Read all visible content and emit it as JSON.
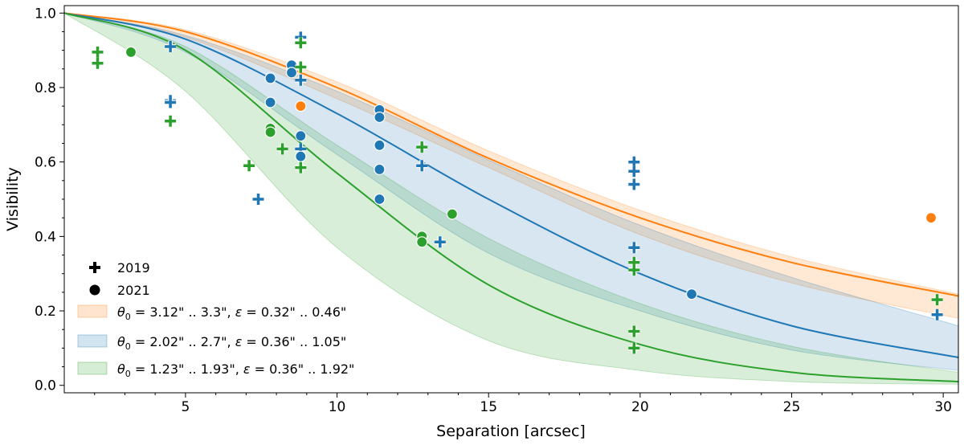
{
  "chart_data": {
    "type": "scatter",
    "title": "",
    "xlabel": "Separation [arcsec]",
    "ylabel": "Visibility",
    "xlim": [
      1,
      30.5
    ],
    "ylim": [
      -0.02,
      1.02
    ],
    "xticks": [
      5,
      10,
      15,
      20,
      25,
      30
    ],
    "yticks": [
      0.0,
      0.2,
      0.4,
      0.6,
      0.8,
      1.0
    ],
    "xtick_labels": [
      "5",
      "10",
      "15",
      "20",
      "25",
      "30"
    ],
    "ytick_labels": [
      "0.0",
      "0.2",
      "0.4",
      "0.6",
      "0.8",
      "1.0"
    ],
    "legend_position": "lower-left",
    "legend_markers": [
      {
        "symbol": "plus",
        "label": "2019"
      },
      {
        "symbol": "circle",
        "label": "2021"
      }
    ],
    "bands": [
      {
        "name": "orange",
        "color": "#ff7f0e",
        "label_theta": " = 3.12\" .. 3.3\", ",
        "label_eps": " = 0.32\" .. 0.46\"",
        "center_x": [
          1,
          5,
          10,
          15,
          20,
          25,
          30.5
        ],
        "center_y": [
          1.0,
          0.95,
          0.8,
          0.61,
          0.45,
          0.33,
          0.24
        ],
        "band_x": [
          1,
          5,
          10,
          15,
          20,
          25,
          30.5
        ],
        "upper": [
          1.0,
          0.955,
          0.815,
          0.63,
          0.47,
          0.345,
          0.245
        ],
        "lower": [
          1.0,
          0.935,
          0.77,
          0.585,
          0.405,
          0.275,
          0.18
        ]
      },
      {
        "name": "blue",
        "color": "#1f77b4",
        "label_theta": " = 2.02\" .. 2.7\", ",
        "label_eps": " = 0.36\" .. 1.05\"",
        "center_x": [
          1,
          5,
          10,
          15,
          20,
          25,
          30.5
        ],
        "center_y": [
          1.0,
          0.93,
          0.73,
          0.5,
          0.3,
          0.16,
          0.075
        ],
        "band_x": [
          1,
          5,
          10,
          15,
          20,
          25,
          30.5
        ],
        "upper": [
          1.0,
          0.94,
          0.79,
          0.605,
          0.43,
          0.29,
          0.16
        ],
        "lower": [
          1.0,
          0.895,
          0.62,
          0.355,
          0.2,
          0.095,
          0.04
        ]
      },
      {
        "name": "green",
        "color": "#2ca02c",
        "label_theta": " = 1.23\" .. 1.93\", ",
        "label_eps": " = 0.36\" .. 1.92\"",
        "center_x": [
          1,
          5,
          10,
          15,
          20,
          25,
          30.5
        ],
        "center_y": [
          1.0,
          0.9,
          0.57,
          0.27,
          0.11,
          0.035,
          0.01
        ],
        "band_x": [
          1,
          5,
          10,
          15,
          20,
          25,
          30.5
        ],
        "upper": [
          1.0,
          0.91,
          0.645,
          0.395,
          0.22,
          0.105,
          0.035
        ],
        "lower": [
          1.0,
          0.79,
          0.37,
          0.12,
          0.04,
          0.01,
          0.003
        ]
      }
    ],
    "series": [
      {
        "name": "orange 2019",
        "color": "#ff7f0e",
        "marker": "plus",
        "x": [],
        "y": []
      },
      {
        "name": "orange 2021",
        "color": "#ff7f0e",
        "marker": "circle",
        "x": [
          8.8,
          29.6
        ],
        "y": [
          0.75,
          0.45
        ]
      },
      {
        "name": "blue 2019",
        "color": "#1f77b4",
        "marker": "plus",
        "x": [
          4.5,
          4.5,
          4.5,
          7.4,
          8.8,
          8.8,
          8.8,
          12.8,
          13.4,
          19.8,
          19.8,
          19.8,
          19.8,
          29.8
        ],
        "y": [
          0.91,
          0.765,
          0.76,
          0.5,
          0.935,
          0.82,
          0.635,
          0.59,
          0.385,
          0.6,
          0.575,
          0.54,
          0.37,
          0.19
        ]
      },
      {
        "name": "blue 2021",
        "color": "#1f77b4",
        "marker": "circle",
        "x": [
          7.8,
          7.8,
          8.5,
          8.5,
          8.8,
          8.8,
          11.4,
          11.4,
          11.4,
          11.4,
          11.4,
          21.7
        ],
        "y": [
          0.825,
          0.76,
          0.86,
          0.84,
          0.67,
          0.615,
          0.74,
          0.72,
          0.645,
          0.58,
          0.5,
          0.245
        ]
      },
      {
        "name": "green 2019",
        "color": "#2ca02c",
        "marker": "plus",
        "x": [
          2.1,
          2.1,
          4.5,
          7.1,
          8.2,
          8.8,
          8.8,
          8.8,
          12.8,
          19.8,
          19.8,
          19.8,
          19.8,
          29.8
        ],
        "y": [
          0.895,
          0.865,
          0.71,
          0.59,
          0.635,
          0.92,
          0.855,
          0.585,
          0.64,
          0.33,
          0.31,
          0.145,
          0.1,
          0.23
        ]
      },
      {
        "name": "green 2021",
        "color": "#2ca02c",
        "marker": "circle",
        "x": [
          3.2,
          7.8,
          7.8,
          12.8,
          12.8,
          13.8
        ],
        "y": [
          0.895,
          0.69,
          0.68,
          0.4,
          0.385,
          0.46
        ]
      }
    ]
  }
}
